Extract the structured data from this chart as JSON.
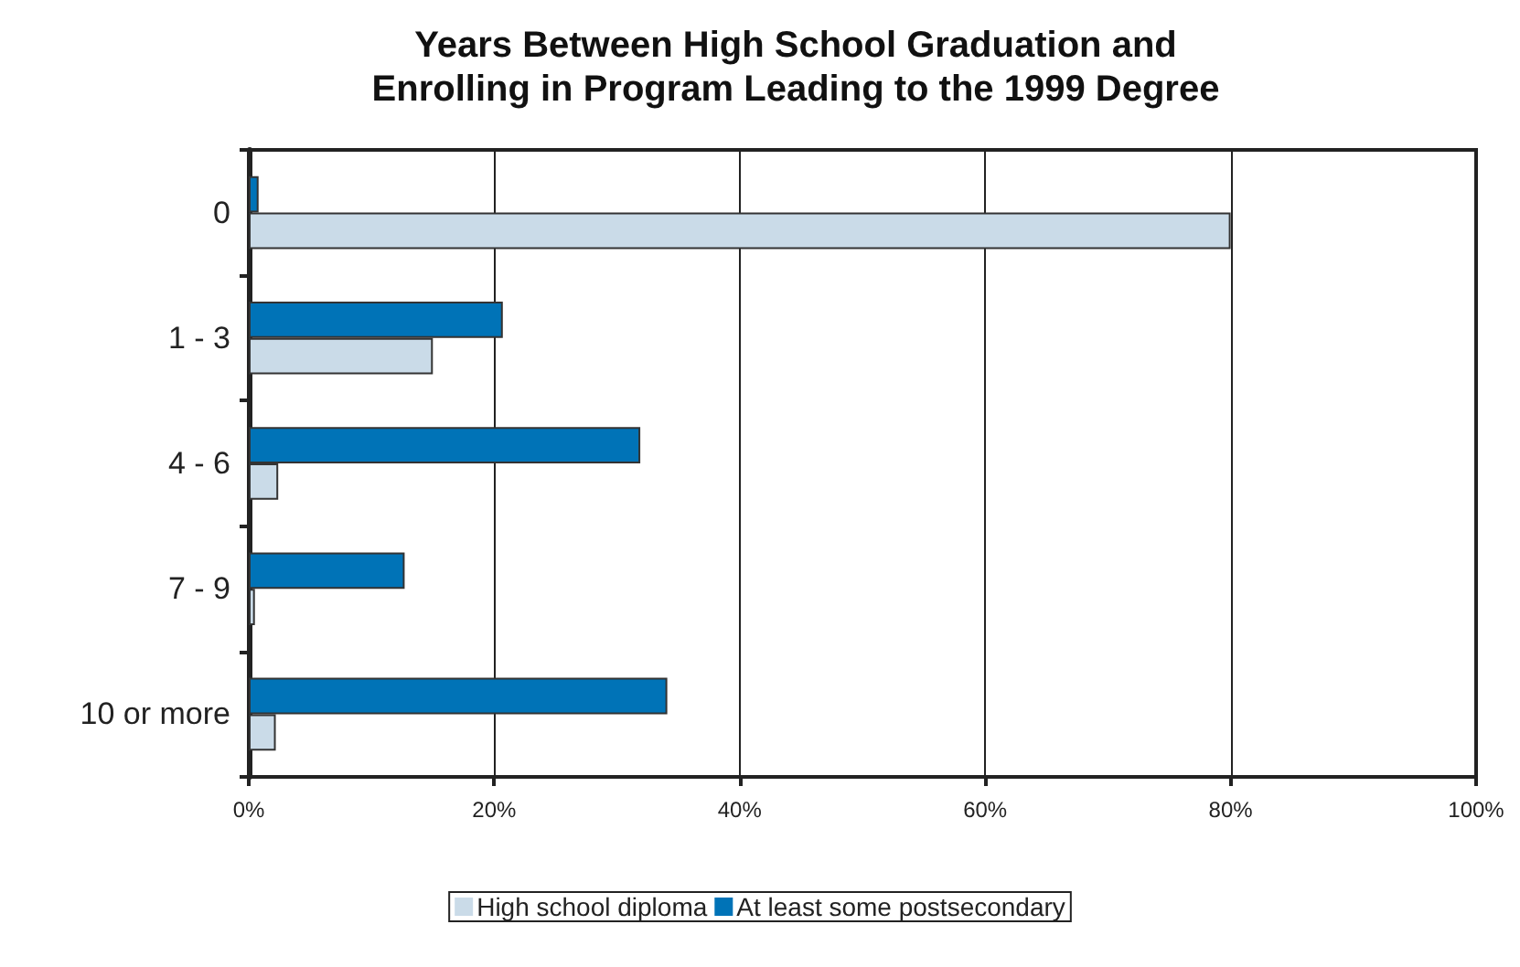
{
  "chart_data": {
    "type": "bar",
    "orientation": "horizontal",
    "title": "Years Between High School Graduation and\nEnrolling in Program Leading to the 1999 Degree",
    "categories": [
      "0",
      "1 - 3",
      "4 - 6",
      "7 - 9",
      "10 or more"
    ],
    "series": [
      {
        "name": "High school diploma",
        "color": "#cadbe8",
        "values": [
          80.0,
          15.0,
          2.4,
          0.5,
          2.2
        ]
      },
      {
        "name": "At least some postsecondary",
        "color": "#0073b7",
        "values": [
          0.8,
          20.7,
          31.9,
          12.7,
          34.1
        ]
      }
    ],
    "xlim": [
      0,
      100
    ],
    "xticks": [
      {
        "value": 0,
        "label": "0%"
      },
      {
        "value": 20,
        "label": "20%"
      },
      {
        "value": 40,
        "label": "40%"
      },
      {
        "value": 60,
        "label": "60%"
      },
      {
        "value": 80,
        "label": "80%"
      },
      {
        "value": 100,
        "label": "100%"
      }
    ],
    "grid": "x",
    "legend": "bottom"
  }
}
